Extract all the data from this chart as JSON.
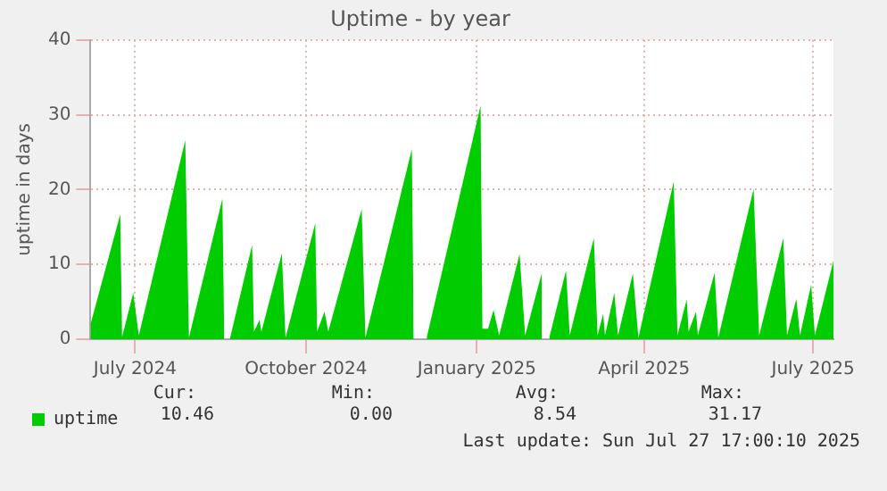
{
  "chart_data": {
    "type": "area",
    "title": "Uptime - by year",
    "ylabel": "uptime in days",
    "x": [
      "2024-06-22",
      "2024-07-08",
      "2024-07-09",
      "2024-07-15",
      "2024-07-18",
      "2024-08-12",
      "2024-08-14",
      "2024-09-01",
      "2024-09-02",
      "2024-09-03",
      "2024-09-05",
      "2024-09-17",
      "2024-09-18",
      "2024-09-21",
      "2024-09-22",
      "2024-10-03",
      "2024-10-05",
      "2024-10-21",
      "2024-10-22",
      "2024-10-26",
      "2024-10-28",
      "2024-11-15",
      "2024-11-17",
      "2024-12-12",
      "2024-12-13",
      "2024-12-16",
      "2024-12-20",
      "2025-01-18",
      "2025-01-19",
      "2025-01-22",
      "2025-01-25",
      "2025-01-28",
      "2025-02-08",
      "2025-02-11",
      "2025-02-20",
      "2025-02-22",
      "2025-02-24",
      "2025-03-05",
      "2025-03-07",
      "2025-03-20",
      "2025-03-22",
      "2025-03-25",
      "2025-03-26",
      "2025-03-31",
      "2025-04-02",
      "2025-04-10",
      "2025-04-13",
      "2025-05-02",
      "2025-05-04",
      "2025-05-09",
      "2025-05-10",
      "2025-05-14",
      "2025-05-15",
      "2025-05-24",
      "2025-05-26",
      "2025-06-14",
      "2025-06-17",
      "2025-06-30",
      "2025-07-02",
      "2025-07-07",
      "2025-07-09",
      "2025-07-15",
      "2025-07-17",
      "2025-07-27"
    ],
    "series": [
      {
        "name": "uptime",
        "color": "#00cc00",
        "values": [
          2.0,
          16.7,
          0.3,
          6.2,
          0.5,
          26.6,
          0.2,
          18.8,
          0,
          null,
          0,
          12.6,
          1.0,
          2.6,
          1.0,
          11.5,
          0.2,
          15.5,
          1.0,
          3.7,
          1.0,
          17.4,
          0.2,
          25.4,
          0.2,
          null,
          0.2,
          31.2,
          1.4,
          1.4,
          3.9,
          0.5,
          11.4,
          0.5,
          8.9,
          null,
          0.2,
          9.2,
          0.5,
          13.5,
          0.5,
          3.4,
          0.5,
          6.2,
          0.5,
          8.8,
          0.2,
          21.1,
          0.5,
          5.3,
          1.0,
          3.7,
          0.5,
          8.9,
          0.2,
          20.1,
          0.5,
          13.5,
          0.5,
          5.4,
          0.5,
          7.3,
          0.5,
          10.5
        ]
      }
    ],
    "xlim": [
      "2024-06-22",
      "2025-07-27"
    ],
    "xticks": [
      {
        "value": "2024-07-16",
        "label": "July 2024"
      },
      {
        "value": "2024-10-16",
        "label": "October 2024"
      },
      {
        "value": "2025-01-16",
        "label": "January 2025"
      },
      {
        "value": "2025-04-16",
        "label": "April 2025"
      },
      {
        "value": "2025-07-16",
        "label": "July 2025"
      }
    ],
    "ylim": [
      0,
      40
    ],
    "yticks": [
      0,
      10,
      20,
      30,
      40
    ],
    "grid": true,
    "legend": "bottom left",
    "annotations": [
      "Cur:",
      "10.46",
      "Min:",
      "0.00",
      "Avg:",
      "8.54",
      "Max:",
      "31.17",
      "Last update: Sun Jul 27 17:00:10 2025"
    ]
  }
}
